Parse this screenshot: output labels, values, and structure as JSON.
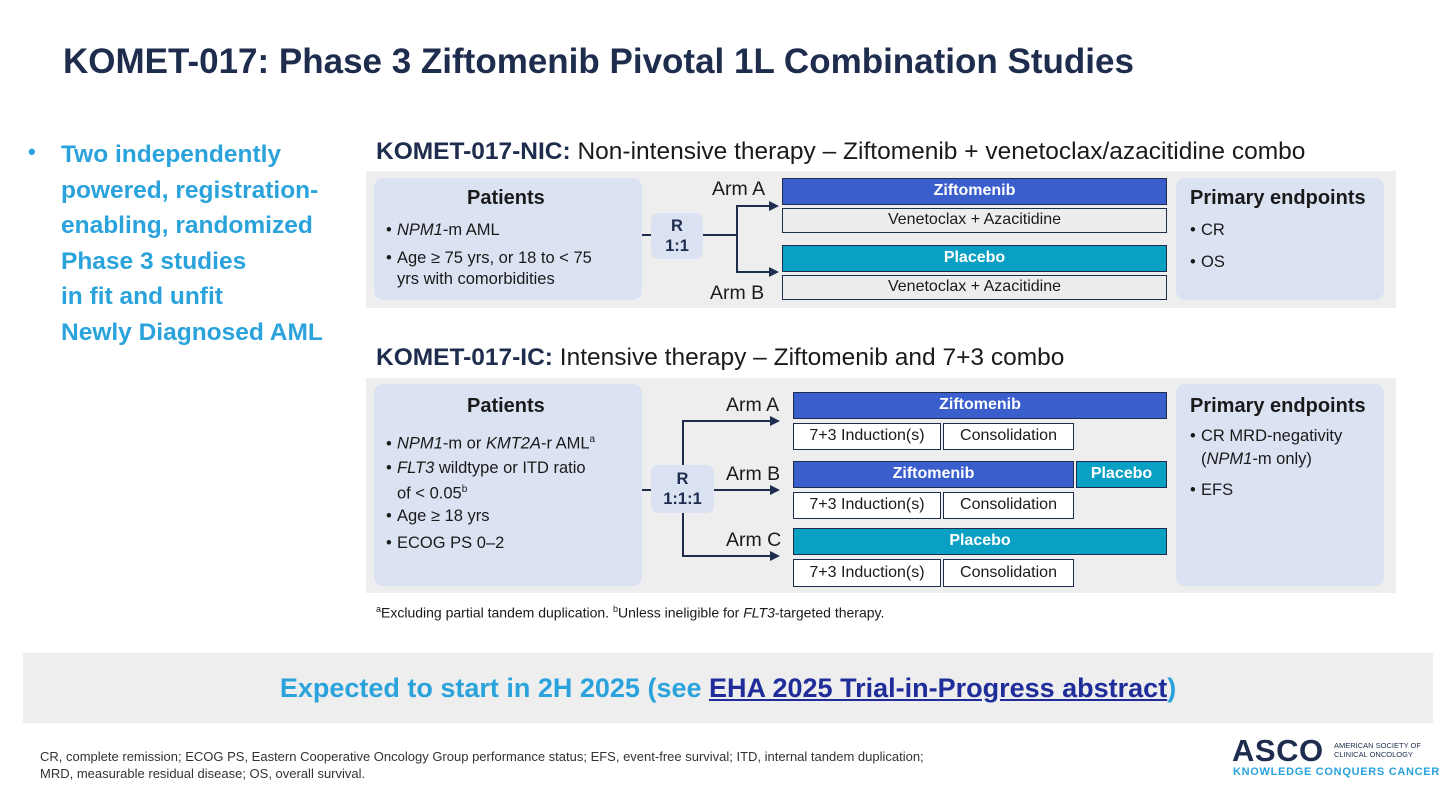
{
  "title": "KOMET-017: Phase 3 Ziftomenib Pivotal 1L Combination Studies",
  "bullet": {
    "marker": "•",
    "lines": [
      "Two independently",
      "powered, registration-",
      "enabling, randomized",
      "Phase 3 studies",
      "in fit and unfit",
      "Newly Diagnosed AML"
    ]
  },
  "nic": {
    "title_bold": "KOMET-017-NIC:",
    "title_rest": " Non-intensive therapy – Ziftomenib + venetoclax/azacitidine combo",
    "patients_head": "Patients",
    "patients": [
      {
        "italic": "NPM1",
        "text": "-m AML"
      },
      {
        "text": "Age ≥ 75 yrs, or 18 to < 75"
      },
      {
        "text": "yrs with comorbidities"
      }
    ],
    "rand_label": "R",
    "rand_ratio": "1:1",
    "arm_a": "Arm A",
    "arm_b": "Arm B",
    "arm_a_top": "Ziftomenib",
    "arm_a_bottom": "Venetoclax + Azacitidine",
    "arm_b_top": "Placebo",
    "arm_b_bottom": "Venetoclax + Azacitidine",
    "endpoints_head": "Primary endpoints",
    "endpoints": [
      "CR",
      "OS"
    ]
  },
  "ic": {
    "title_bold": "KOMET-017-IC:",
    "title_rest": " Intensive therapy – Ziftomenib and 7+3 combo",
    "patients_head": "Patients",
    "patients": {
      "p1_italic_a": "NPM1",
      "p1_mid": "-m or ",
      "p1_italic_b": "KMT2A",
      "p1_end": "-r AML",
      "p1_sup": "a",
      "p2_italic": "FLT3",
      "p2_text": " wildtype or ITD ratio",
      "p2_line2": "of < 0.05",
      "p2_sup": "b",
      "p3": "Age ≥ 18 yrs",
      "p4": "ECOG PS 0–2"
    },
    "rand_label": "R",
    "rand_ratio": "1:1:1",
    "arm_a": "Arm A",
    "arm_b": "Arm B",
    "arm_c": "Arm C",
    "arm_a_top": "Ziftomenib",
    "arm_b_top": "Ziftomenib",
    "arm_b_top2": "Placebo",
    "arm_c_top": "Placebo",
    "induction": "7+3 Induction(s)",
    "consolidation": "Consolidation",
    "endpoints_head": "Primary endpoints",
    "endpoint1_line1": "CR MRD-negativity",
    "endpoint1_line2_open": "(",
    "endpoint1_line2_italic": "NPM1",
    "endpoint1_line2_rest": "-m only)",
    "endpoint2": "EFS"
  },
  "footnote": {
    "sup_a": "a",
    "a_text": "Excluding partial tandem duplication. ",
    "sup_b": "b",
    "b_text": "Unless ineligible for ",
    "b_italic": "FLT3",
    "b_end": "-targeted therapy."
  },
  "banner": {
    "text_before": "Expected to start in 2H 2025 (see ",
    "link": "EHA 2025 Trial-in-Progress abstract",
    "text_after": ")"
  },
  "abbreviations": [
    "CR, complete remission; ECOG PS, Eastern Cooperative Oncology Group performance status; EFS, event-free survival; ITD, internal tandem duplication;",
    "MRD, measurable residual disease; OS, overall survival."
  ],
  "logo": {
    "word": "ASCO",
    "side_line1": "AMERICAN SOCIETY OF",
    "side_line2": "CLINICAL ONCOLOGY",
    "tagline": "KNOWLEDGE CONQUERS CANCER"
  }
}
